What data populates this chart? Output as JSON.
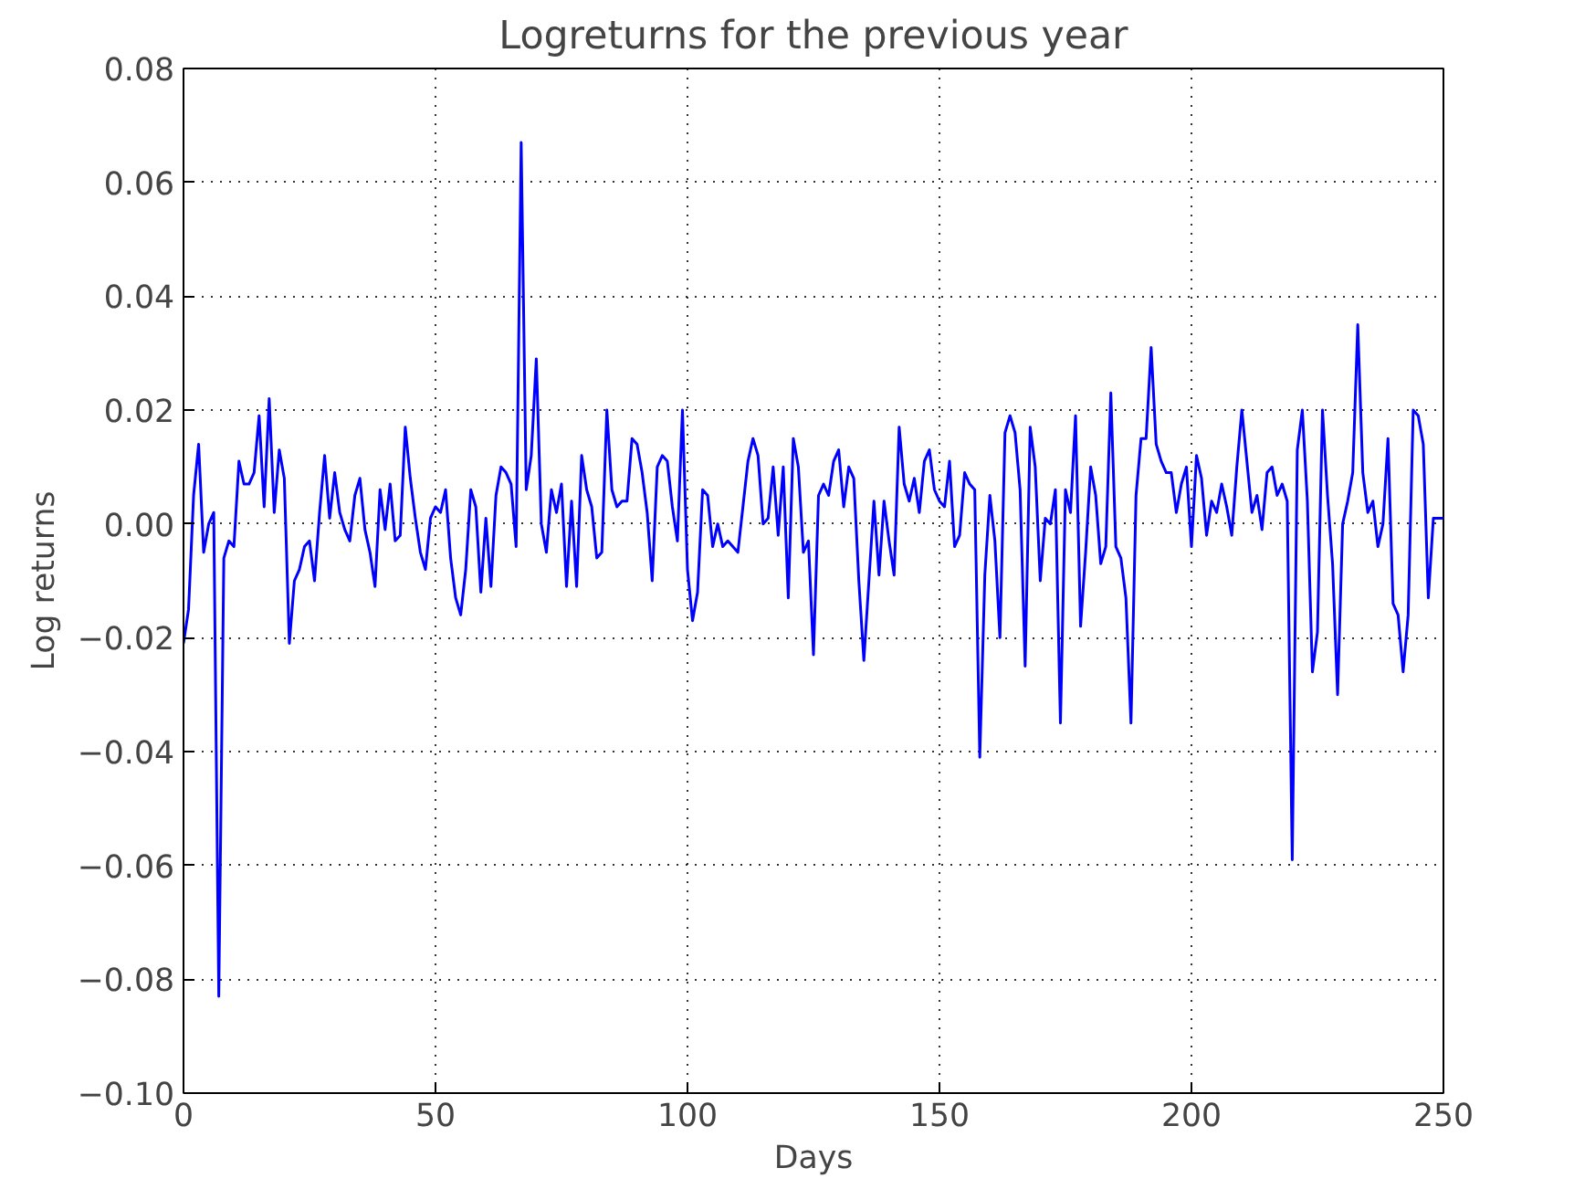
{
  "chart_data": {
    "type": "line",
    "title": "Logreturns for the previous year",
    "xlabel": "Days",
    "ylabel": "Log returns",
    "xlim": [
      0,
      250
    ],
    "xticks": [
      0,
      50,
      100,
      150,
      200,
      250
    ],
    "ylim": [
      -0.1,
      0.08
    ],
    "yticks": [
      {
        "value": -0.1,
        "label": "−0.10"
      },
      {
        "value": -0.08,
        "label": "−0.08"
      },
      {
        "value": -0.06,
        "label": "−0.06"
      },
      {
        "value": -0.04,
        "label": "−0.04"
      },
      {
        "value": -0.02,
        "label": "−0.02"
      },
      {
        "value": 0.0,
        "label": "0.00"
      },
      {
        "value": 0.02,
        "label": "0.02"
      },
      {
        "value": 0.04,
        "label": "0.04"
      },
      {
        "value": 0.06,
        "label": "0.06"
      },
      {
        "value": 0.08,
        "label": "0.08"
      }
    ],
    "grid": true,
    "line_style": "solid",
    "x": [
      0,
      1,
      2,
      3,
      4,
      5,
      6,
      7,
      8,
      9,
      10,
      11,
      12,
      13,
      14,
      15,
      16,
      17,
      18,
      19,
      20,
      21,
      22,
      23,
      24,
      25,
      26,
      27,
      28,
      29,
      30,
      31,
      32,
      33,
      34,
      35,
      36,
      37,
      38,
      39,
      40,
      41,
      42,
      43,
      44,
      45,
      46,
      47,
      48,
      49,
      50,
      51,
      52,
      53,
      54,
      55,
      56,
      57,
      58,
      59,
      60,
      61,
      62,
      63,
      64,
      65,
      66,
      67,
      68,
      69,
      70,
      71,
      72,
      73,
      74,
      75,
      76,
      77,
      78,
      79,
      80,
      81,
      82,
      83,
      84,
      85,
      86,
      87,
      88,
      89,
      90,
      91,
      92,
      93,
      94,
      95,
      96,
      97,
      98,
      99,
      100,
      101,
      102,
      103,
      104,
      105,
      106,
      107,
      108,
      109,
      110,
      111,
      112,
      113,
      114,
      115,
      116,
      117,
      118,
      119,
      120,
      121,
      122,
      123,
      124,
      125,
      126,
      127,
      128,
      129,
      130,
      131,
      132,
      133,
      134,
      135,
      136,
      137,
      138,
      139,
      140,
      141,
      142,
      143,
      144,
      145,
      146,
      147,
      148,
      149,
      150,
      151,
      152,
      153,
      154,
      155,
      156,
      157,
      158,
      159,
      160,
      161,
      162,
      163,
      164,
      165,
      166,
      167,
      168,
      169,
      170,
      171,
      172,
      173,
      174,
      175,
      176,
      177,
      178,
      179,
      180,
      181,
      182,
      183,
      184,
      185,
      186,
      187,
      188,
      189,
      190,
      191,
      192,
      193,
      194,
      195,
      196,
      197,
      198,
      199,
      200,
      201,
      202,
      203,
      204,
      205,
      206,
      207,
      208,
      209,
      210,
      211,
      212,
      213,
      214,
      215,
      216,
      217,
      218,
      219,
      220,
      221,
      222,
      223,
      224,
      225,
      226,
      227,
      228,
      229,
      230,
      231,
      232,
      233,
      234,
      235,
      236,
      237,
      238,
      239,
      240,
      241,
      242,
      243,
      244,
      245,
      246,
      247,
      248,
      249,
      250
    ],
    "series": [
      {
        "color": "#0000ff",
        "values": [
          -0.021,
          -0.015,
          0.005,
          0.014,
          -0.005,
          0.0,
          0.002,
          -0.083,
          -0.006,
          -0.003,
          -0.004,
          0.011,
          0.007,
          0.007,
          0.009,
          0.019,
          0.003,
          0.022,
          0.002,
          0.013,
          0.008,
          -0.021,
          -0.01,
          -0.008,
          -0.004,
          -0.003,
          -0.01,
          0.002,
          0.012,
          0.001,
          0.009,
          0.002,
          -0.001,
          -0.003,
          0.005,
          0.008,
          -0.001,
          -0.005,
          -0.011,
          0.006,
          -0.001,
          0.007,
          -0.003,
          -0.002,
          0.017,
          0.008,
          0.001,
          -0.005,
          -0.008,
          0.001,
          0.003,
          0.002,
          0.006,
          -0.006,
          -0.013,
          -0.016,
          -0.008,
          0.006,
          0.003,
          -0.012,
          0.001,
          -0.011,
          0.005,
          0.01,
          0.009,
          0.007,
          -0.004,
          0.067,
          0.006,
          0.012,
          0.029,
          0.0,
          -0.005,
          0.006,
          0.002,
          0.007,
          -0.011,
          0.004,
          -0.011,
          0.012,
          0.006,
          0.003,
          -0.006,
          -0.005,
          0.02,
          0.006,
          0.003,
          0.004,
          0.004,
          0.015,
          0.014,
          0.009,
          0.002,
          -0.01,
          0.01,
          0.012,
          0.011,
          0.003,
          -0.003,
          0.02,
          -0.008,
          -0.017,
          -0.012,
          0.006,
          0.005,
          -0.004,
          0.0,
          -0.004,
          -0.003,
          -0.004,
          -0.005,
          0.003,
          0.011,
          0.015,
          0.012,
          0.0,
          0.001,
          0.01,
          -0.002,
          0.01,
          -0.013,
          0.015,
          0.01,
          -0.005,
          -0.003,
          -0.023,
          0.005,
          0.007,
          0.005,
          0.011,
          0.013,
          0.003,
          0.01,
          0.008,
          -0.01,
          -0.024,
          -0.01,
          0.004,
          -0.009,
          0.004,
          -0.003,
          -0.009,
          0.017,
          0.007,
          0.004,
          0.008,
          0.002,
          0.011,
          0.013,
          0.006,
          0.004,
          0.003,
          0.011,
          -0.004,
          -0.002,
          0.009,
          0.007,
          0.006,
          -0.041,
          -0.009,
          0.005,
          -0.003,
          -0.02,
          0.016,
          0.019,
          0.016,
          0.006,
          -0.025,
          0.017,
          0.01,
          -0.01,
          0.001,
          0.0,
          0.006,
          -0.035,
          0.006,
          0.002,
          0.019,
          -0.018,
          -0.005,
          0.01,
          0.005,
          -0.007,
          -0.004,
          0.023,
          -0.004,
          -0.006,
          -0.013,
          -0.035,
          0.005,
          0.015,
          0.015,
          0.031,
          0.014,
          0.011,
          0.009,
          0.009,
          0.002,
          0.007,
          0.01,
          -0.004,
          0.012,
          0.008,
          -0.002,
          0.004,
          0.002,
          0.007,
          0.003,
          -0.002,
          0.01,
          0.02,
          0.011,
          0.002,
          0.005,
          -0.001,
          0.009,
          0.01,
          0.005,
          0.007,
          0.004,
          -0.059,
          0.013,
          0.02,
          0.004,
          -0.026,
          -0.019,
          0.02,
          0.005,
          -0.007,
          -0.03,
          0.0,
          0.004,
          0.009,
          0.035,
          0.009,
          0.002,
          0.004,
          -0.004,
          0.0,
          0.015,
          -0.014,
          -0.016,
          -0.026,
          -0.016,
          0.02,
          0.019,
          0.014,
          -0.013,
          0.001,
          0.001,
          0.001
        ]
      }
    ]
  }
}
